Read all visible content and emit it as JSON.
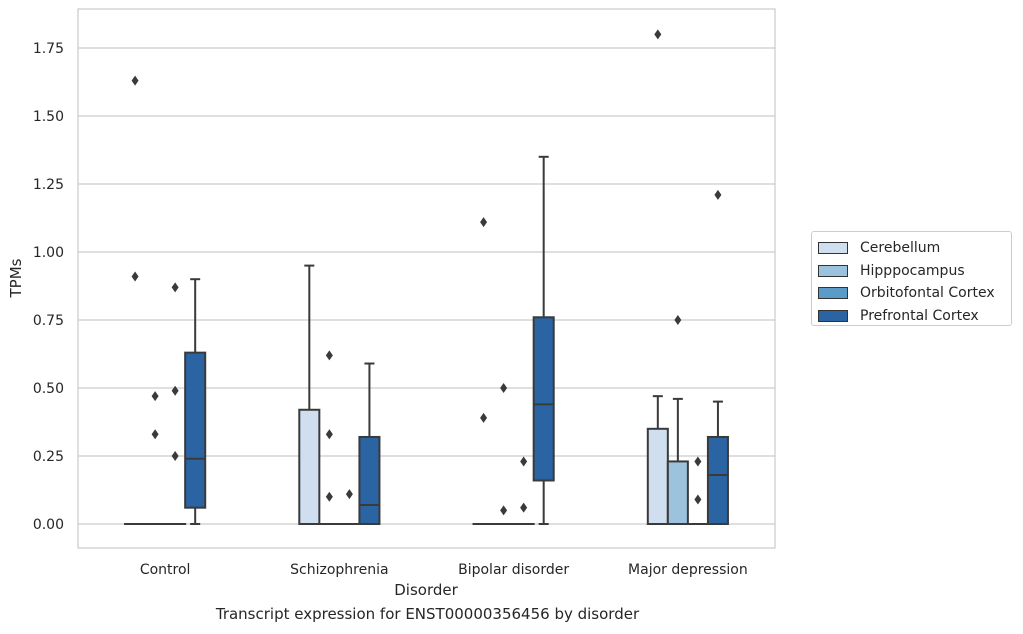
{
  "chart_data": {
    "type": "box",
    "xlabel": "Disorder",
    "ylabel": "TPMs",
    "caption": "Transcript expression for ENST00000356456 by disorder",
    "categories": [
      "Control",
      "Schizophrenia",
      "Bipolar disorder",
      "Major depression"
    ],
    "ylim": [
      -0.09,
      1.89
    ],
    "yticks": [
      "0.00",
      "0.25",
      "0.50",
      "0.75",
      "1.00",
      "1.25",
      "1.50",
      "1.75"
    ],
    "grid": true,
    "legend_position": "right",
    "series": [
      {
        "name": "Cerebellum",
        "color": "#cfdff0",
        "boxes": [
          {
            "q1": 0,
            "median": 0,
            "q3": 0,
            "whislo": 0,
            "whishi": 0,
            "fliers": [
              1.63,
              0.91
            ]
          },
          {
            "q1": 0,
            "median": 0,
            "q3": 0.42,
            "whislo": 0,
            "whishi": 0.95,
            "fliers": []
          },
          {
            "q1": 0,
            "median": 0,
            "q3": 0,
            "whislo": 0,
            "whishi": 0,
            "fliers": [
              1.11,
              0.39
            ]
          },
          {
            "q1": 0,
            "median": 0,
            "q3": 0.35,
            "whislo": 0,
            "whishi": 0.47,
            "fliers": [
              1.8
            ]
          }
        ]
      },
      {
        "name": "Hipppocampus",
        "color": "#9dc2dd",
        "boxes": [
          {
            "q1": 0,
            "median": 0,
            "q3": 0,
            "whislo": 0,
            "whishi": 0,
            "fliers": [
              0.47,
              0.33
            ]
          },
          {
            "q1": 0,
            "median": 0,
            "q3": 0,
            "whislo": 0,
            "whishi": 0,
            "fliers": [
              0.62,
              0.33,
              0.1
            ]
          },
          {
            "q1": 0,
            "median": 0,
            "q3": 0,
            "whislo": 0,
            "whishi": 0,
            "fliers": [
              0.5,
              0.05
            ]
          },
          {
            "q1": 0,
            "median": 0,
            "q3": 0.23,
            "whislo": 0,
            "whishi": 0.46,
            "fliers": [
              0.75
            ]
          }
        ]
      },
      {
        "name": "Orbitofontal Cortex",
        "color": "#5b9bc8",
        "boxes": [
          {
            "q1": 0,
            "median": 0,
            "q3": 0,
            "whislo": 0,
            "whishi": 0,
            "fliers": [
              0.87,
              0.49,
              0.25
            ]
          },
          {
            "q1": 0,
            "median": 0,
            "q3": 0,
            "whislo": 0,
            "whishi": 0,
            "fliers": [
              0.11
            ]
          },
          {
            "q1": 0,
            "median": 0,
            "q3": 0,
            "whislo": 0,
            "whishi": 0,
            "fliers": [
              0.23,
              0.06
            ]
          },
          {
            "q1": 0,
            "median": 0,
            "q3": 0,
            "whislo": 0,
            "whishi": 0,
            "fliers": [
              0.23,
              0.09
            ]
          }
        ]
      },
      {
        "name": "Prefrontal Cortex",
        "color": "#2a64a3",
        "boxes": [
          {
            "q1": 0.06,
            "median": 0.24,
            "q3": 0.63,
            "whislo": 0,
            "whishi": 0.9,
            "fliers": []
          },
          {
            "q1": 0,
            "median": 0.07,
            "q3": 0.32,
            "whislo": 0,
            "whishi": 0.59,
            "fliers": []
          },
          {
            "q1": 0.16,
            "median": 0.44,
            "q3": 0.76,
            "whislo": 0,
            "whishi": 1.35,
            "fliers": []
          },
          {
            "q1": 0,
            "median": 0.18,
            "q3": 0.32,
            "whislo": 0,
            "whishi": 0.45,
            "fliers": [
              1.21
            ]
          }
        ]
      }
    ]
  }
}
